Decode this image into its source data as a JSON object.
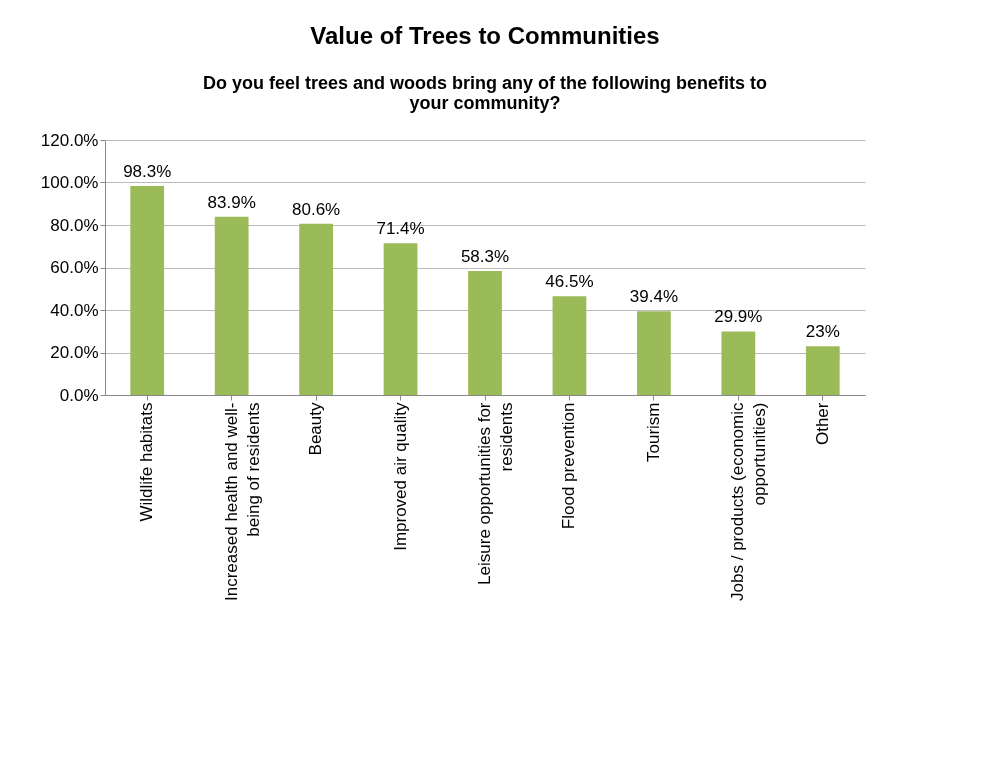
{
  "chart_data": {
    "type": "bar",
    "title": "Value of Trees to Communities",
    "subtitle": "Do you feel trees and woods bring any of the following benefits to your community?",
    "categories": [
      "Wildlife habitats",
      "Increased health and well-being of residents",
      "Beauty",
      "Improved air quality",
      "Leisure opportunities for residents",
      "Flood prevention",
      "Tourism",
      "Jobs / products (economic opportunities)",
      "Other"
    ],
    "values": [
      98.3,
      83.9,
      80.6,
      71.4,
      58.3,
      46.5,
      39.4,
      29.9,
      23
    ],
    "value_labels": [
      "98.3%",
      "83.9%",
      "80.6%",
      "71.4%",
      "58.3%",
      "46.5%",
      "39.4%",
      "29.9%",
      "23%"
    ],
    "color": "#9bbb59",
    "ylim": [
      0,
      120
    ],
    "yticks": [
      {
        "value": 0,
        "label": "0.0%"
      },
      {
        "value": 20,
        "label": "20.0%"
      },
      {
        "value": 40,
        "label": "40.0%"
      },
      {
        "value": 60,
        "label": "60.0%"
      },
      {
        "value": 80,
        "label": "80.0%"
      },
      {
        "value": 100,
        "label": "100.0%"
      },
      {
        "value": 120,
        "label": "120.0%"
      }
    ],
    "grid": "y"
  }
}
